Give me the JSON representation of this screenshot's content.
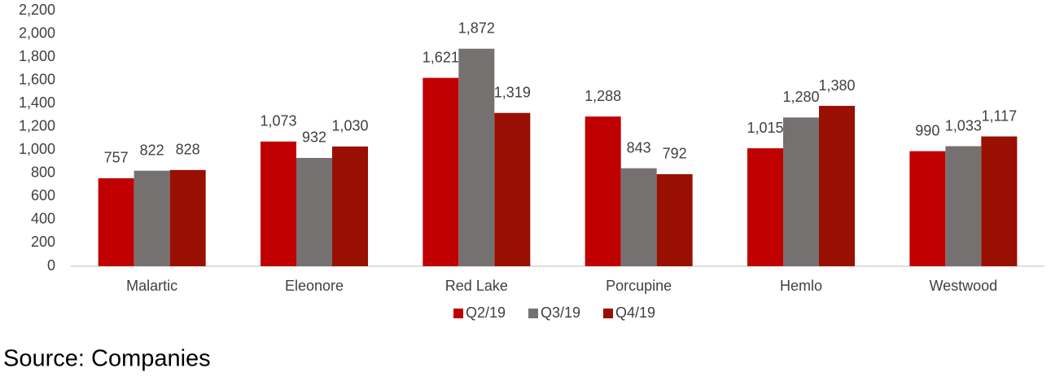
{
  "chart_data": {
    "type": "bar",
    "categories": [
      "Malartic",
      "Eleonore",
      "Red Lake",
      "Porcupine",
      "Hemlo",
      "Westwood"
    ],
    "series": [
      {
        "name": "Q2/19",
        "color": "#c00000",
        "values": [
          757,
          1073,
          1621,
          1288,
          1015,
          990
        ],
        "value_labels": [
          "757",
          "1,073",
          "1,621",
          "1,288",
          "1,015",
          "990"
        ]
      },
      {
        "name": "Q3/19",
        "color": "#767171",
        "values": [
          822,
          932,
          1872,
          843,
          1280,
          1033
        ],
        "value_labels": [
          "822",
          "932",
          "1,872",
          "843",
          "1,280",
          "1,033"
        ]
      },
      {
        "name": "Q4/19",
        "color": "#990f02",
        "values": [
          828,
          1030,
          1319,
          792,
          1380,
          1117
        ],
        "value_labels": [
          "828",
          "1,030",
          "1,319",
          "792",
          "1,380",
          "1,117"
        ]
      }
    ],
    "ylim": [
      0,
      2200
    ],
    "yticks": [
      0,
      200,
      400,
      600,
      800,
      {
        "value": 1000,
        "label": "1,000"
      },
      {
        "value": 1200,
        "label": "1,200"
      },
      {
        "value": 1400,
        "label": "1,400"
      },
      {
        "value": 1600,
        "label": "1,600"
      },
      {
        "value": 1800,
        "label": "1,800"
      },
      {
        "value": 2000,
        "label": "2,000"
      },
      {
        "value": 2200,
        "label": "2,200"
      }
    ],
    "grid": false,
    "legend": "bottom",
    "source": "Source: Companies"
  }
}
